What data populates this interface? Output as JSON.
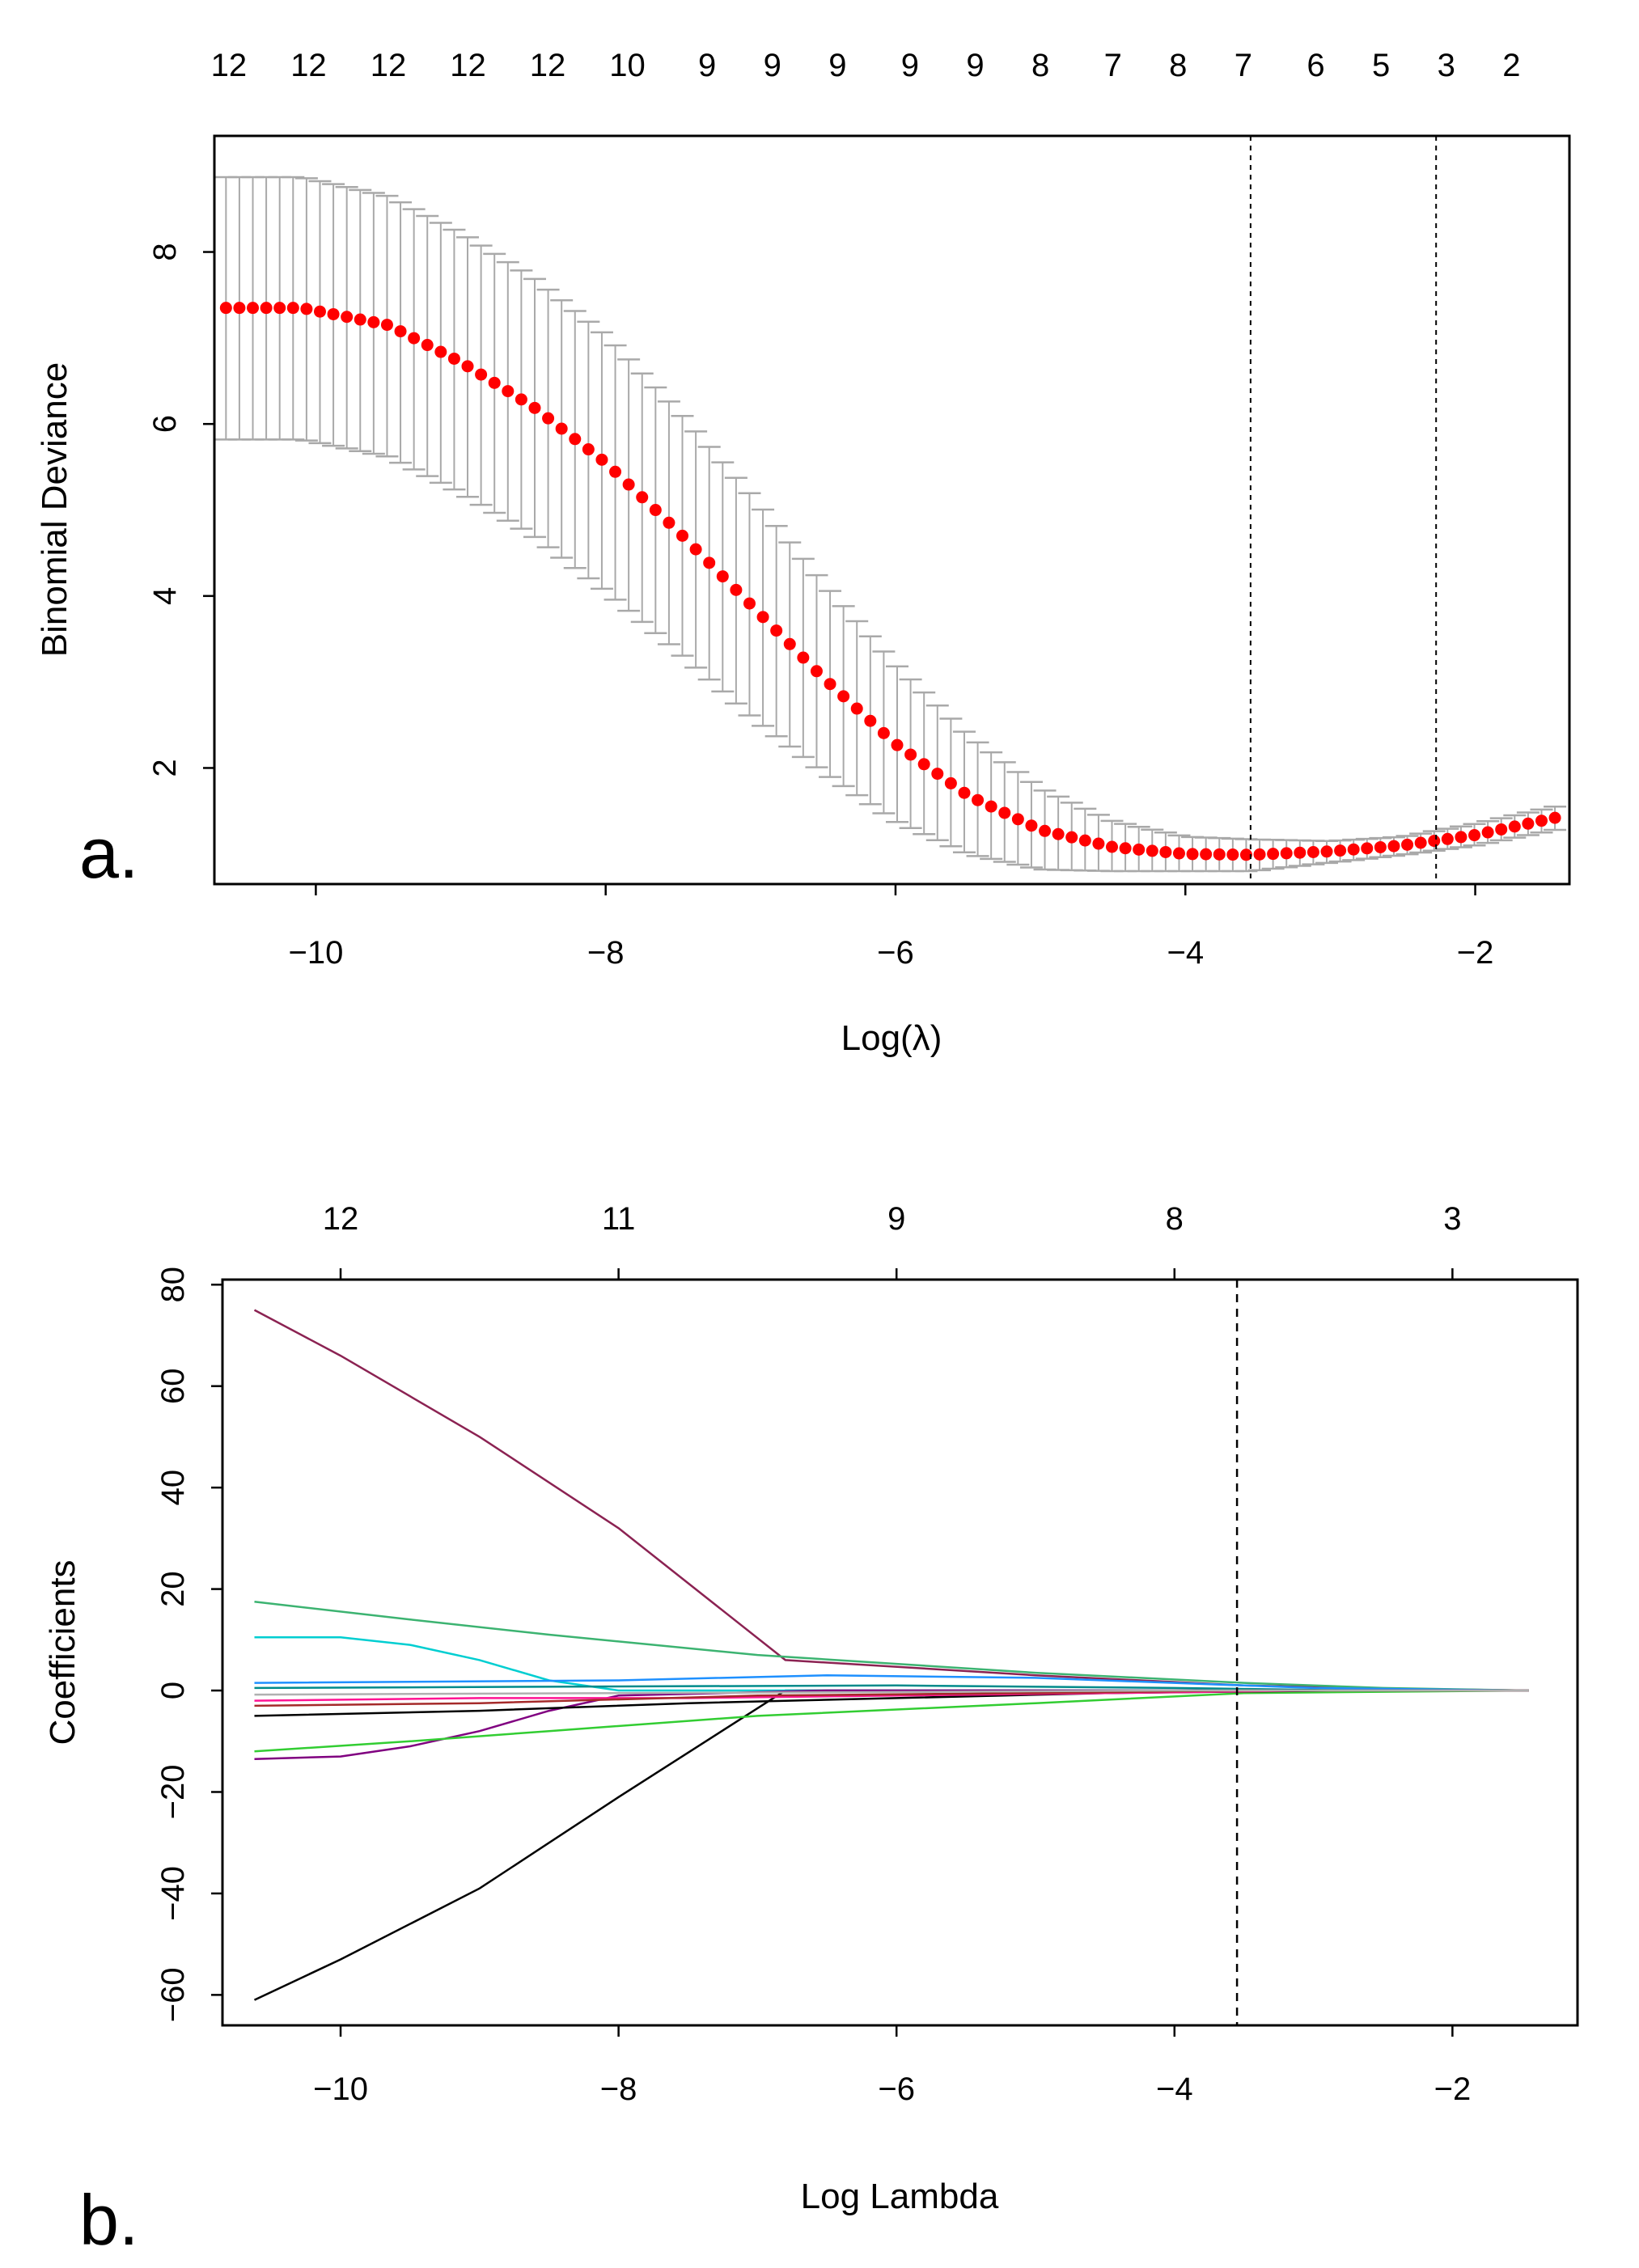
{
  "chart_data": [
    {
      "panel_label": "a.",
      "type": "scatter",
      "subtype": "cross-validation deviance curve with error bars",
      "xlabel": "Log(λ)",
      "ylabel": "Binomial Deviance",
      "xlim": [
        -10.7,
        -1.35
      ],
      "ylim": [
        0.65,
        9.35
      ],
      "x_ticks": [
        -10,
        -8,
        -6,
        -4,
        -2
      ],
      "y_ticks": [
        2,
        4,
        6,
        8
      ],
      "top_counts": [
        "12",
        "12",
        "12",
        "12",
        "12",
        "10",
        "9",
        "9",
        "9",
        "9",
        "9",
        "8",
        "7",
        "8",
        "7",
        "6",
        "5",
        "3",
        "2"
      ],
      "top_counts_x": [
        -10.6,
        -10.05,
        -9.5,
        -8.95,
        -8.4,
        -7.85,
        -7.3,
        -6.85,
        -6.4,
        -5.9,
        -5.45,
        -5.0,
        -4.5,
        -4.05,
        -3.6,
        -3.1,
        -2.65,
        -2.2,
        -1.75
      ],
      "vlines": [
        -3.55,
        -2.27
      ],
      "point_color": "#ff0000",
      "errorbar_color": "#a9a9a9",
      "series": [
        {
          "name": "mean_deviance",
          "curve_points": [
            [
              -10.62,
              7.35
            ],
            [
              -10.1,
              7.35
            ],
            [
              -9.5,
              7.15
            ],
            [
              -9.0,
              6.72
            ],
            [
              -8.5,
              6.2
            ],
            [
              -8.0,
              5.55
            ],
            [
              -7.5,
              4.75
            ],
            [
              -7.0,
              3.9
            ],
            [
              -6.5,
              3.05
            ],
            [
              -6.0,
              2.28
            ],
            [
              -5.5,
              1.68
            ],
            [
              -5.0,
              1.28
            ],
            [
              -4.5,
              1.08
            ],
            [
              -4.0,
              1.0
            ],
            [
              -3.55,
              0.99
            ],
            [
              -3.0,
              1.03
            ],
            [
              -2.5,
              1.1
            ],
            [
              -2.0,
              1.22
            ],
            [
              -1.45,
              1.42
            ]
          ],
          "upper_points": [
            [
              -10.62,
              8.87
            ],
            [
              -10.1,
              8.87
            ],
            [
              -9.5,
              8.65
            ],
            [
              -9.0,
              8.22
            ],
            [
              -8.5,
              7.7
            ],
            [
              -8.0,
              7.03
            ],
            [
              -7.5,
              6.15
            ],
            [
              -7.0,
              5.18
            ],
            [
              -6.5,
              4.15
            ],
            [
              -6.0,
              3.2
            ],
            [
              -5.5,
              2.38
            ],
            [
              -5.0,
              1.76
            ],
            [
              -4.5,
              1.38
            ],
            [
              -4.0,
              1.2
            ],
            [
              -3.55,
              1.17
            ],
            [
              -3.0,
              1.15
            ],
            [
              -2.5,
              1.2
            ],
            [
              -2.0,
              1.35
            ],
            [
              -1.45,
              1.55
            ]
          ],
          "lower_points": [
            [
              -10.62,
              5.82
            ],
            [
              -10.1,
              5.82
            ],
            [
              -9.5,
              5.62
            ],
            [
              -9.0,
              5.2
            ],
            [
              -8.5,
              4.7
            ],
            [
              -8.0,
              4.05
            ],
            [
              -7.5,
              3.35
            ],
            [
              -7.0,
              2.6
            ],
            [
              -6.5,
              1.95
            ],
            [
              -6.0,
              1.38
            ],
            [
              -5.5,
              1.0
            ],
            [
              -5.0,
              0.82
            ],
            [
              -4.5,
              0.8
            ],
            [
              -4.0,
              0.8
            ],
            [
              -3.55,
              0.8
            ],
            [
              -3.0,
              0.9
            ],
            [
              -2.5,
              0.99
            ],
            [
              -2.0,
              1.1
            ],
            [
              -1.45,
              1.28
            ]
          ]
        }
      ],
      "n_points": 100
    },
    {
      "panel_label": "b.",
      "type": "line",
      "subtype": "lasso coefficient paths",
      "xlabel": "Log Lambda",
      "ylabel": "Coefficients",
      "xlim": [
        -10.85,
        -1.1
      ],
      "ylim": [
        -66,
        81
      ],
      "x_ticks": [
        -10,
        -8,
        -6,
        -4,
        -2
      ],
      "y_ticks": [
        -60,
        -40,
        -20,
        0,
        20,
        40,
        60,
        80
      ],
      "top_counts": [
        "12",
        "11",
        "9",
        "8",
        "3"
      ],
      "top_counts_x": [
        -10,
        -8,
        -6,
        -4,
        -2
      ],
      "vlines": [
        -3.55
      ],
      "series": [
        {
          "name": "path-1",
          "color": "#8b2252",
          "points": [
            [
              -10.62,
              75
            ],
            [
              -10.0,
              66
            ],
            [
              -9.0,
              50
            ],
            [
              -8.0,
              32
            ],
            [
              -6.8,
              6
            ],
            [
              -5.0,
              3
            ],
            [
              -3.5,
              1
            ],
            [
              -2.5,
              0.4
            ],
            [
              -1.45,
              0
            ]
          ]
        },
        {
          "name": "path-2",
          "color": "#000000",
          "points": [
            [
              -10.62,
              -61
            ],
            [
              -10.0,
              -53
            ],
            [
              -9.0,
              -39
            ],
            [
              -8.0,
              -21
            ],
            [
              -6.8,
              0
            ],
            [
              -5.0,
              0
            ],
            [
              -1.45,
              0
            ]
          ]
        },
        {
          "name": "path-3",
          "color": "#3cb371",
          "points": [
            [
              -10.62,
              17.5
            ],
            [
              -9.5,
              14
            ],
            [
              -8.5,
              11
            ],
            [
              -7.0,
              7
            ],
            [
              -5.0,
              3.5
            ],
            [
              -3.5,
              1.5
            ],
            [
              -2.5,
              0.5
            ],
            [
              -1.45,
              0
            ]
          ]
        },
        {
          "name": "path-4",
          "color": "#00ced1",
          "points": [
            [
              -10.62,
              10.5
            ],
            [
              -10.0,
              10.5
            ],
            [
              -9.5,
              9
            ],
            [
              -9.0,
              6
            ],
            [
              -8.5,
              2
            ],
            [
              -8.0,
              0
            ],
            [
              -1.45,
              0
            ]
          ]
        },
        {
          "name": "path-5",
          "color": "#800080",
          "points": [
            [
              -10.62,
              -13.5
            ],
            [
              -10.0,
              -13
            ],
            [
              -9.5,
              -11
            ],
            [
              -9.0,
              -8
            ],
            [
              -8.5,
              -4
            ],
            [
              -8.0,
              -1
            ],
            [
              -6.5,
              0
            ],
            [
              -1.45,
              0
            ]
          ]
        },
        {
          "name": "path-6",
          "color": "#32cd32",
          "points": [
            [
              -10.62,
              -12
            ],
            [
              -9.5,
              -10
            ],
            [
              -8.5,
              -8
            ],
            [
              -7.0,
              -5
            ],
            [
              -5.0,
              -2.5
            ],
            [
              -3.5,
              -0.5
            ],
            [
              -1.45,
              0
            ]
          ]
        },
        {
          "name": "path-7",
          "color": "#1e90ff",
          "points": [
            [
              -10.62,
              1.5
            ],
            [
              -8.0,
              2
            ],
            [
              -6.5,
              3
            ],
            [
              -5.0,
              2.5
            ],
            [
              -3.0,
              0.5
            ],
            [
              -1.45,
              0
            ]
          ]
        },
        {
          "name": "path-8",
          "color": "#000000",
          "points": [
            [
              -10.62,
              -5
            ],
            [
              -9.0,
              -4
            ],
            [
              -7.5,
              -2.5
            ],
            [
              -6.0,
              -1.5
            ],
            [
              -4.5,
              -0.5
            ],
            [
              -2.8,
              0
            ],
            [
              -1.45,
              0
            ]
          ]
        },
        {
          "name": "path-9",
          "color": "#ff1493",
          "points": [
            [
              -10.62,
              -2
            ],
            [
              -9.0,
              -1.5
            ],
            [
              -7.5,
              -1.5
            ],
            [
              -6.0,
              -1
            ],
            [
              -4.5,
              -0.5
            ],
            [
              -3.0,
              0
            ],
            [
              -1.45,
              0
            ]
          ]
        },
        {
          "name": "path-10",
          "color": "#008b8b",
          "points": [
            [
              -10.62,
              0.5
            ],
            [
              -8.0,
              0.8
            ],
            [
              -6.0,
              1
            ],
            [
              -4.0,
              0.5
            ],
            [
              -2.7,
              0
            ],
            [
              -1.45,
              0
            ]
          ]
        },
        {
          "name": "path-11",
          "color": "#a52a2a",
          "points": [
            [
              -10.62,
              -3
            ],
            [
              -9.0,
              -2.5
            ],
            [
              -7.0,
              -1
            ],
            [
              -5.0,
              -0.5
            ],
            [
              -3.5,
              0
            ],
            [
              -1.45,
              0
            ]
          ]
        },
        {
          "name": "path-12",
          "color": "#b0b0b0",
          "points": [
            [
              -10.62,
              -0.8
            ],
            [
              -8.0,
              -0.5
            ],
            [
              -6.0,
              -0.3
            ],
            [
              -4.0,
              0
            ],
            [
              -1.45,
              0
            ]
          ]
        }
      ]
    }
  ]
}
